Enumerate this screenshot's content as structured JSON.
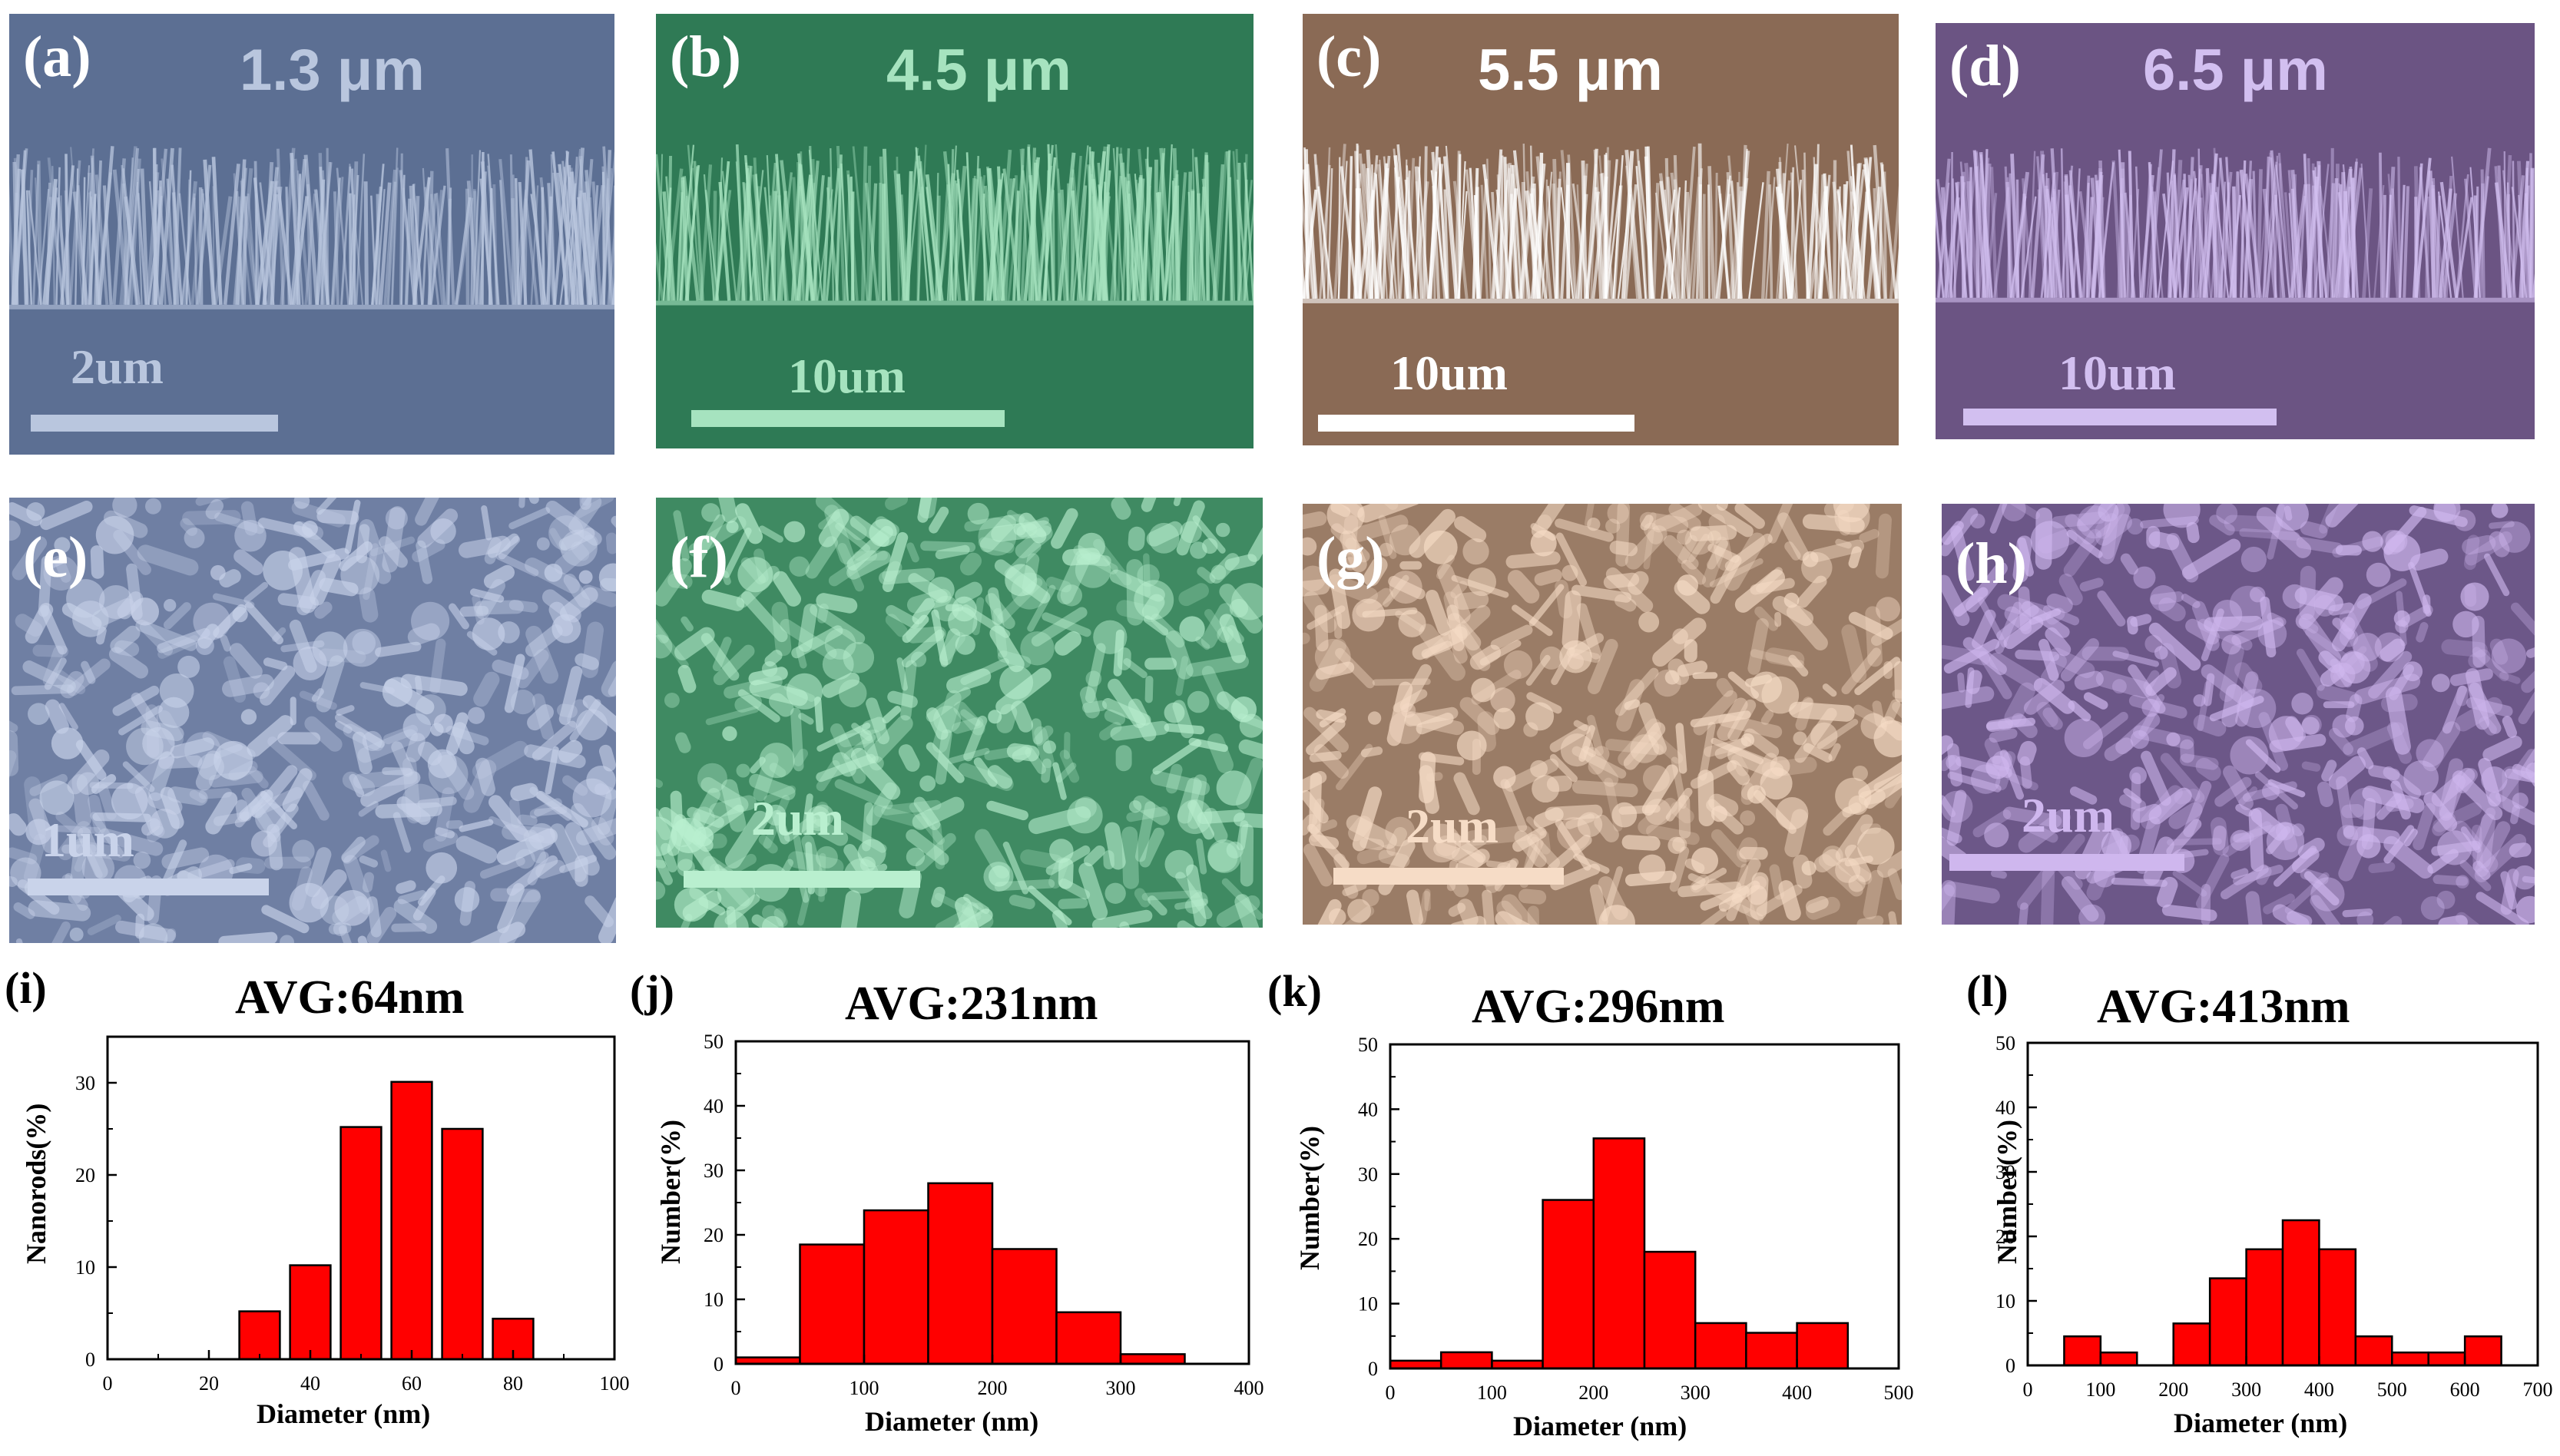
{
  "sem_panels": [
    {
      "label": "(a)",
      "thickness": "1.3 μm",
      "scale": "2um",
      "tint": "#5c6f93",
      "light": "#b9c6de",
      "thick_color": "#b9c6de"
    },
    {
      "label": "(b)",
      "thickness": "4.5 μm",
      "scale": "10um",
      "tint": "#2f7a55",
      "light": "#a6e3bf",
      "thick_color": "#a6e3bf"
    },
    {
      "label": "(c)",
      "thickness": "5.5 μm",
      "scale": "10um",
      "tint": "#8a6a55",
      "light": "#ffffff",
      "thick_color": "#ffffff"
    },
    {
      "label": "(d)",
      "thickness": "6.5 μm",
      "scale": "10um",
      "tint": "#6b5483",
      "light": "#d2bff0",
      "thick_color": "#d2bff0"
    },
    {
      "label": "(e)",
      "scale": "1um",
      "tint": "#6f7fa3",
      "light": "#c9d3ea"
    },
    {
      "label": "(f)",
      "scale": "2um",
      "tint": "#3f8a62",
      "light": "#b9efcf"
    },
    {
      "label": "(g)",
      "scale": "2um",
      "tint": "#9a7c66",
      "light": "#f6dcc6"
    },
    {
      "label": "(h)",
      "scale": "2um",
      "tint": "#6c5788",
      "light": "#cfb7ee"
    }
  ],
  "chart_data": [
    {
      "type": "bar",
      "panel": "(i)",
      "title": "AVG:64nm",
      "xlabel": "Diameter (nm)",
      "ylabel": "Nanorods(%)",
      "xlim": [
        0,
        100
      ],
      "ylim": [
        0,
        35
      ],
      "xticks": [
        0,
        20,
        40,
        60,
        80,
        100
      ],
      "yticks": [
        0,
        10,
        20,
        30
      ],
      "bin_width": 8,
      "centers": [
        30,
        40,
        50,
        60,
        70,
        80
      ],
      "values": [
        5.2,
        10.2,
        25.2,
        30.1,
        25.0,
        4.4
      ],
      "color": "#ff0000"
    },
    {
      "type": "bar",
      "panel": "(j)",
      "title": "AVG:231nm",
      "xlabel": "Diameter (nm)",
      "ylabel": "Number(%)",
      "xlim": [
        0,
        400
      ],
      "ylim": [
        0,
        50
      ],
      "xticks": [
        0,
        100,
        200,
        300,
        400
      ],
      "yticks": [
        0,
        10,
        20,
        30,
        40,
        50
      ],
      "bin_width": 50,
      "centers": [
        25,
        75,
        125,
        175,
        225,
        275,
        325
      ],
      "values": [
        1.0,
        18.5,
        23.8,
        28.0,
        17.8,
        8.0,
        1.5
      ],
      "color": "#ff0000"
    },
    {
      "type": "bar",
      "panel": "(k)",
      "title": "AVG:296nm",
      "xlabel": "Diameter (nm)",
      "ylabel": "Number(%)",
      "xlim": [
        0,
        500
      ],
      "ylim": [
        0,
        50
      ],
      "xticks": [
        0,
        100,
        200,
        300,
        400,
        500
      ],
      "yticks": [
        0,
        10,
        20,
        30,
        40,
        50
      ],
      "bin_width": 50,
      "centers": [
        25,
        75,
        125,
        175,
        225,
        275,
        325,
        375,
        425
      ],
      "values": [
        1.2,
        2.5,
        1.2,
        26.0,
        35.5,
        18.0,
        7.0,
        5.5,
        7.0
      ],
      "color": "#ff0000"
    },
    {
      "type": "bar",
      "panel": "(l)",
      "title": "AVG:413nm",
      "xlabel": "Diameter (nm)",
      "ylabel": "Number(%)",
      "xlim": [
        0,
        700
      ],
      "ylim": [
        0,
        50
      ],
      "xticks": [
        0,
        100,
        200,
        300,
        400,
        500,
        600,
        700
      ],
      "yticks": [
        0,
        10,
        20,
        30,
        40,
        50
      ],
      "bin_width": 50,
      "centers": [
        75,
        125,
        225,
        275,
        325,
        375,
        425,
        475,
        525,
        575,
        625
      ],
      "values": [
        4.5,
        2.0,
        6.5,
        13.5,
        18.0,
        22.5,
        18.0,
        4.5,
        2.0,
        2.0,
        4.5
      ],
      "color": "#ff0000"
    }
  ]
}
